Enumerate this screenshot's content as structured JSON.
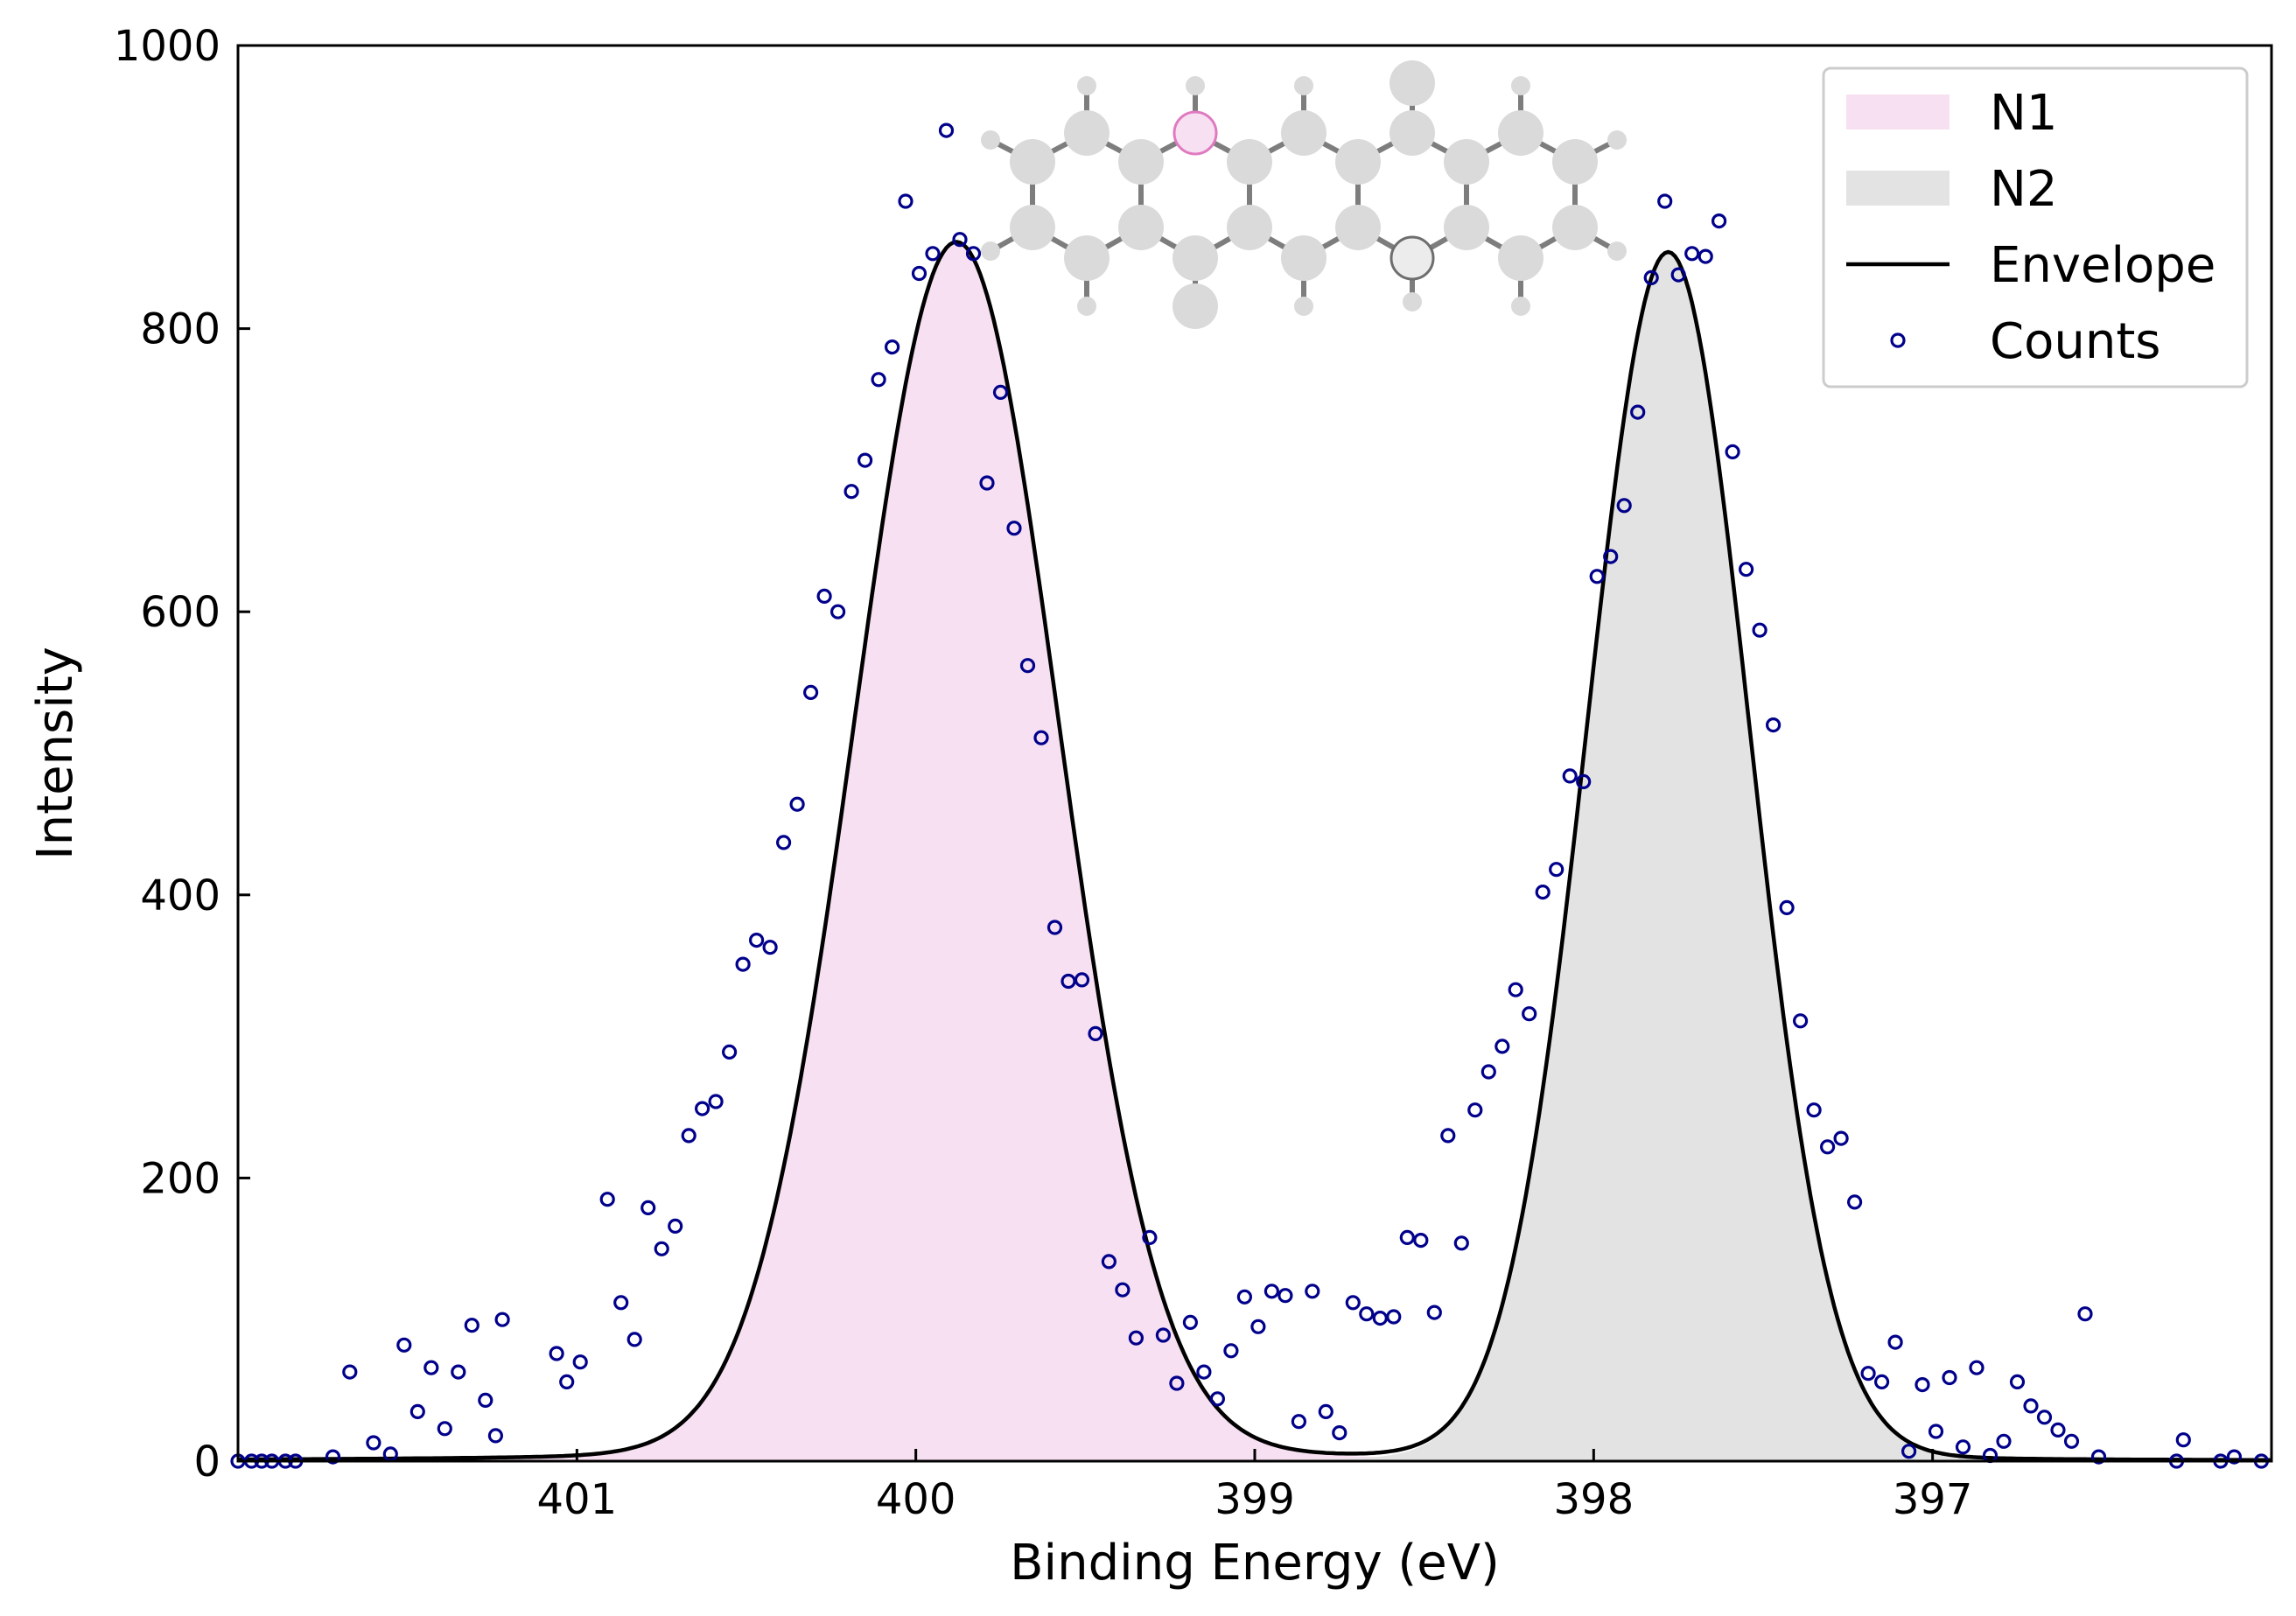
{
  "chart_data": {
    "type": "line",
    "xlabel": "Binding Energy (eV)",
    "ylabel": "Intensity",
    "xlim": [
      402.0,
      396.0
    ],
    "ylim": [
      0,
      1000
    ],
    "x_reversed": true,
    "xticks": [
      401,
      400,
      399,
      398,
      397
    ],
    "yticks": [
      0,
      200,
      400,
      600,
      800,
      1000
    ],
    "grid": false,
    "legend_position": "top-right",
    "colors": {
      "N1": "#f7e0f1",
      "N2": "#e3e3e3",
      "envelope": "#000000",
      "counts": "#00008b"
    },
    "series": [
      {
        "name": "N1",
        "kind": "area",
        "center": 399.88,
        "peak": 850,
        "sigma": 0.3,
        "tail_amplitude": 11,
        "tail_width": 0.72
      },
      {
        "name": "N2",
        "kind": "area",
        "center": 397.78,
        "peak": 838,
        "sigma": 0.24,
        "tail_amplitude": 15,
        "tail_width": 0.3
      },
      {
        "name": "Envelope",
        "kind": "line",
        "sum_of": [
          "N1",
          "N2"
        ]
      },
      {
        "name": "Counts",
        "kind": "scatter",
        "x": [
          402.0,
          401.96,
          401.93,
          401.9,
          401.86,
          401.83,
          401.72,
          401.67,
          401.6,
          401.55,
          401.51,
          401.47,
          401.43,
          401.39,
          401.35,
          401.31,
          401.27,
          401.24,
          401.22,
          401.06,
          401.03,
          400.99,
          400.91,
          400.87,
          400.83,
          400.79,
          400.75,
          400.71,
          400.67,
          400.63,
          400.59,
          400.55,
          400.51,
          400.47,
          400.43,
          400.39,
          400.35,
          400.31,
          400.27,
          400.23,
          400.19,
          400.15,
          400.11,
          400.07,
          400.03,
          399.99,
          399.95,
          399.91,
          399.87,
          399.83,
          399.79,
          399.75,
          399.71,
          399.67,
          399.63,
          399.59,
          399.55,
          399.51,
          399.47,
          399.43,
          399.39,
          399.35,
          399.31,
          399.27,
          399.23,
          399.19,
          399.15,
          399.11,
          399.07,
          399.03,
          398.99,
          398.95,
          398.91,
          398.87,
          398.83,
          398.79,
          398.75,
          398.71,
          398.67,
          398.63,
          398.59,
          398.55,
          398.51,
          398.47,
          398.43,
          398.39,
          398.35,
          398.31,
          398.27,
          398.23,
          398.19,
          398.15,
          398.11,
          398.07,
          398.03,
          397.99,
          397.95,
          397.91,
          397.87,
          397.83,
          397.79,
          397.75,
          397.71,
          397.67,
          397.63,
          397.59,
          397.55,
          397.51,
          397.47,
          397.43,
          397.39,
          397.35,
          397.31,
          397.27,
          397.23,
          397.19,
          397.15,
          397.11,
          397.07,
          397.03,
          396.99,
          396.95,
          396.91,
          396.87,
          396.83,
          396.79,
          396.75,
          396.71,
          396.67,
          396.63,
          396.59,
          396.55,
          396.51,
          396.28,
          396.26,
          396.15,
          396.11,
          396.03,
          395.99
        ],
        "y": [
          0,
          0,
          0,
          0,
          0,
          0,
          3,
          63,
          13,
          5,
          82,
          35,
          66,
          23,
          63,
          96,
          43,
          18,
          100,
          76,
          56,
          70,
          185,
          112,
          86,
          179,
          150,
          166,
          230,
          249,
          254,
          289,
          351,
          368,
          363,
          437,
          464,
          543,
          611,
          600,
          685,
          707,
          764,
          787,
          890,
          839,
          853,
          940,
          863,
          853,
          691,
          755,
          659,
          562,
          511,
          377,
          339,
          340,
          302,
          141,
          121,
          87,
          158,
          89,
          55,
          98,
          63,
          44,
          78,
          116,
          95,
          120,
          117,
          28,
          120,
          35,
          20,
          112,
          104,
          101,
          102,
          158,
          156,
          105,
          230,
          154,
          248,
          275,
          293,
          333,
          316,
          402,
          418,
          484,
          480,
          625,
          639,
          675,
          741,
          836,
          890,
          838,
          853,
          851,
          876,
          713,
          630,
          587,
          520,
          391,
          311,
          248,
          222,
          228,
          183,
          62,
          56,
          84,
          7,
          54,
          21,
          59,
          10,
          66,
          4,
          14,
          56,
          39,
          31,
          22,
          14,
          104,
          3,
          0,
          15,
          0,
          3,
          0,
          0
        ]
      }
    ]
  }
}
